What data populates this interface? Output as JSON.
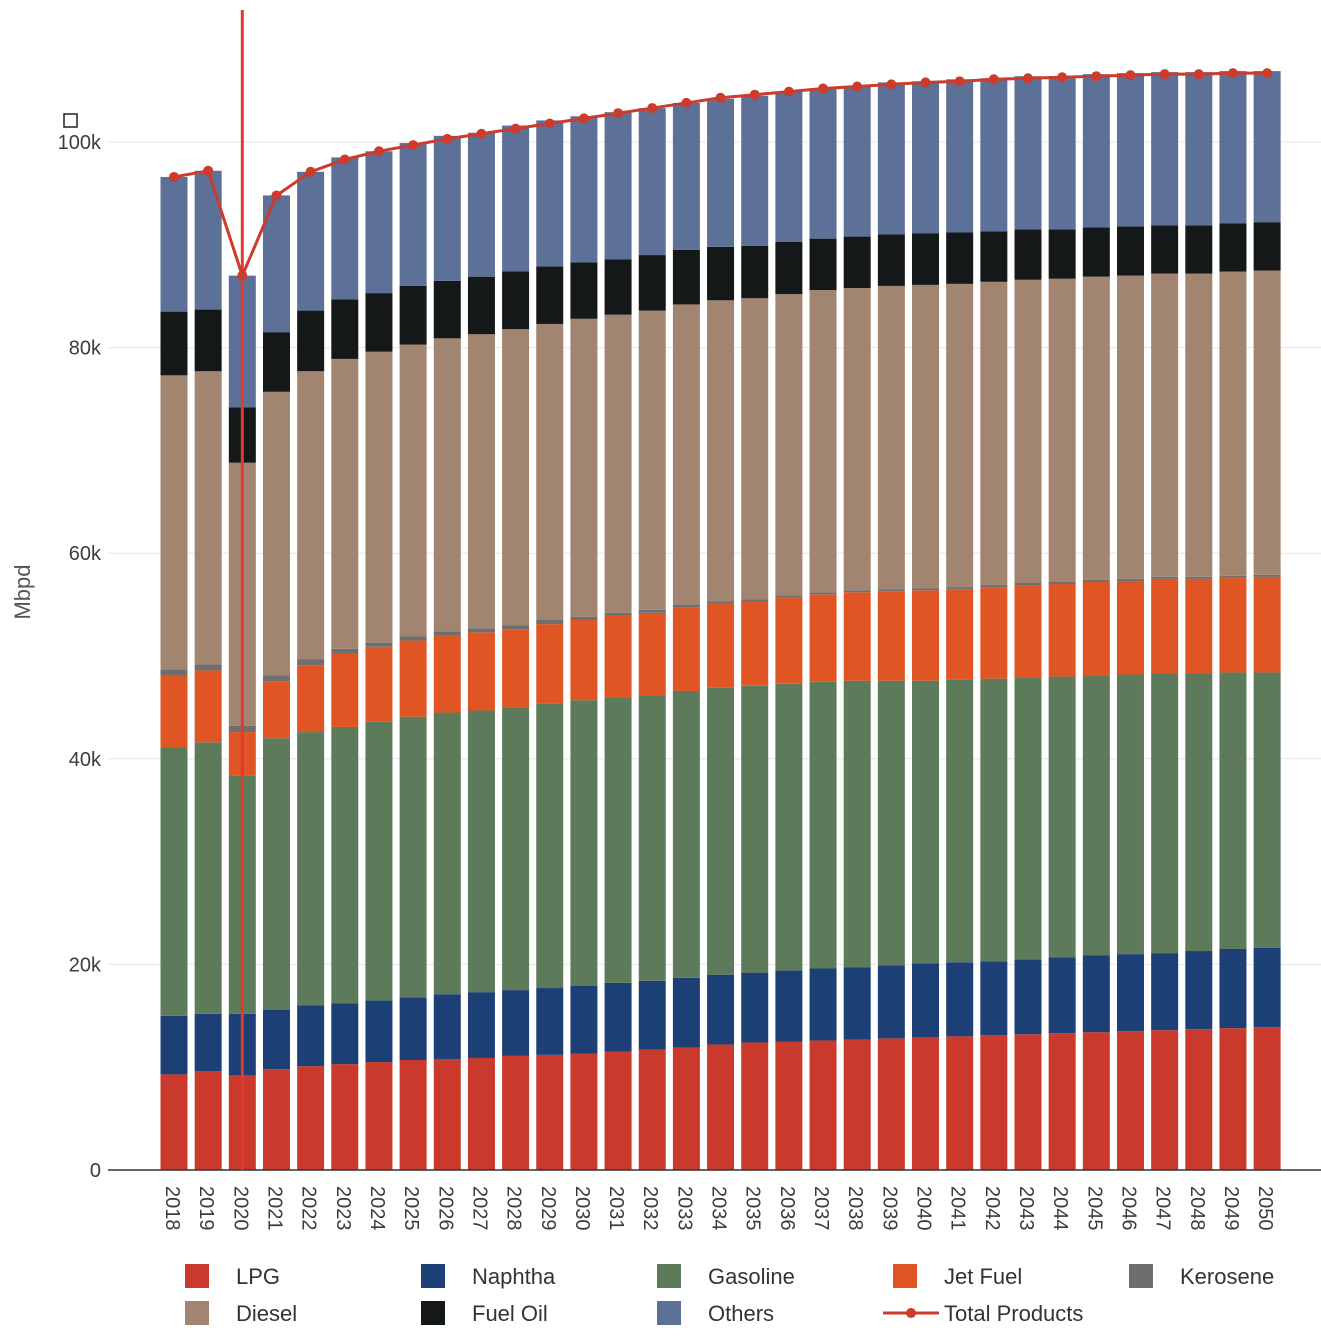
{
  "chart_data": {
    "type": "bar",
    "stacked": true,
    "ylabel": "Mbpd",
    "ylim": [
      0,
      110000
    ],
    "y_ticks": [
      0,
      20000,
      40000,
      60000,
      80000,
      100000
    ],
    "y_tick_labels": [
      "0",
      "20k",
      "40k",
      "60k",
      "80k",
      "100k"
    ],
    "grid": true,
    "legend_position": "bottom",
    "x_label_rotation": "vertical",
    "categories": [
      "2018",
      "2019",
      "2020",
      "2021",
      "2022",
      "2023",
      "2024",
      "2025",
      "2026",
      "2027",
      "2028",
      "2029",
      "2030",
      "2031",
      "2032",
      "2033",
      "2034",
      "2035",
      "2036",
      "2037",
      "2038",
      "2039",
      "2040",
      "2041",
      "2042",
      "2043",
      "2044",
      "2045",
      "2046",
      "2047",
      "2048",
      "2049",
      "2050"
    ],
    "series": [
      {
        "name": "LPG",
        "color": "#c93a2c",
        "values": [
          9300,
          9600,
          9200,
          9800,
          10100,
          10300,
          10500,
          10700,
          10800,
          10900,
          11100,
          11200,
          11300,
          11500,
          11700,
          11900,
          12200,
          12400,
          12500,
          12600,
          12700,
          12800,
          12900,
          13000,
          13100,
          13200,
          13300,
          13400,
          13500,
          13600,
          13700,
          13800,
          13900
        ]
      },
      {
        "name": "Naphtha",
        "color": "#1c4075",
        "values": [
          5700,
          5600,
          6000,
          5800,
          5900,
          5900,
          6000,
          6100,
          6300,
          6400,
          6400,
          6500,
          6600,
          6700,
          6700,
          6800,
          6800,
          6800,
          6900,
          7000,
          7000,
          7100,
          7200,
          7200,
          7200,
          7300,
          7400,
          7500,
          7500,
          7500,
          7600,
          7700,
          7700
        ]
      },
      {
        "name": "Gasoline",
        "color": "#5d7b5a",
        "values": [
          26100,
          26400,
          23200,
          26400,
          26600,
          26900,
          27100,
          27300,
          27400,
          27400,
          27500,
          27700,
          27800,
          27800,
          27800,
          27900,
          27900,
          27900,
          27900,
          27900,
          27900,
          27700,
          27500,
          27500,
          27500,
          27400,
          27300,
          27200,
          27200,
          27200,
          27000,
          26900,
          26800
        ]
      },
      {
        "name": "Jet Fuel",
        "color": "#e05524",
        "values": [
          7000,
          7000,
          4200,
          5500,
          6500,
          7100,
          7300,
          7400,
          7500,
          7600,
          7600,
          7700,
          7800,
          7900,
          8000,
          8100,
          8200,
          8200,
          8400,
          8500,
          8600,
          8700,
          8800,
          8800,
          8900,
          9000,
          9000,
          9100,
          9100,
          9200,
          9200,
          9200,
          9300
        ]
      },
      {
        "name": "Kerosene",
        "color": "#6e6e6e",
        "values": [
          600,
          600,
          600,
          600,
          600,
          500,
          400,
          400,
          400,
          400,
          400,
          400,
          300,
          300,
          300,
          300,
          200,
          200,
          200,
          200,
          200,
          200,
          200,
          200,
          200,
          200,
          200,
          200,
          200,
          200,
          200,
          200,
          200
        ]
      },
      {
        "name": "Diesel",
        "color": "#a28571",
        "values": [
          28600,
          28500,
          25600,
          27600,
          28000,
          28200,
          28300,
          28400,
          28500,
          28600,
          28800,
          28800,
          29000,
          29000,
          29100,
          29200,
          29300,
          29300,
          29300,
          29400,
          29400,
          29500,
          29500,
          29500,
          29500,
          29500,
          29500,
          29500,
          29500,
          29500,
          29500,
          29600,
          29600
        ]
      },
      {
        "name": "Fuel Oil",
        "color": "#151819",
        "values": [
          6200,
          6000,
          5400,
          5800,
          5900,
          5800,
          5700,
          5700,
          5600,
          5600,
          5600,
          5600,
          5500,
          5400,
          5400,
          5300,
          5200,
          5100,
          5100,
          5000,
          5000,
          5000,
          5000,
          5000,
          4900,
          4900,
          4800,
          4800,
          4800,
          4700,
          4700,
          4700,
          4700
        ]
      },
      {
        "name": "Others",
        "color": "#5d7097",
        "values": [
          13100,
          13500,
          12800,
          13300,
          13500,
          13800,
          13800,
          13900,
          14100,
          14000,
          14200,
          14200,
          14200,
          14300,
          14300,
          14300,
          14400,
          14600,
          14600,
          14600,
          14600,
          14800,
          14800,
          14900,
          14900,
          14900,
          14900,
          14900,
          14900,
          14900,
          14900,
          14800,
          14700
        ]
      }
    ],
    "line": {
      "name": "Total Products",
      "color": "#cc3b2c",
      "values": [
        96600,
        97200,
        87000,
        94800,
        97100,
        98300,
        99100,
        99700,
        100300,
        100800,
        101300,
        101800,
        102300,
        102800,
        103300,
        103800,
        104300,
        104600,
        104900,
        105200,
        105400,
        105600,
        105800,
        105900,
        106100,
        106200,
        106300,
        106400,
        106500,
        106600,
        106600,
        106700,
        106700
      ]
    },
    "vertical_marker": {
      "category": "2020",
      "color": "#e23a2c"
    }
  }
}
